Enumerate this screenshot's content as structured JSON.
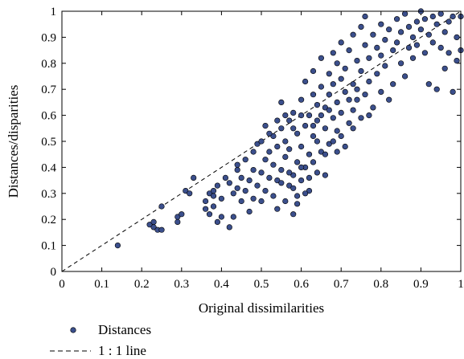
{
  "chart_data": {
    "type": "scatter",
    "xlabel": "Original dissimilarities",
    "ylabel": "Distances/disparities",
    "xlim": [
      0,
      1
    ],
    "ylim": [
      0,
      1
    ],
    "xticks": [
      "0",
      "0.1",
      "0.2",
      "0.3",
      "0.4",
      "0.5",
      "0.6",
      "0.7",
      "0.8",
      "0.9",
      "1"
    ],
    "yticks": [
      "0",
      "0.1",
      "0.2",
      "0.3",
      "0.4",
      "0.5",
      "0.6",
      "0.7",
      "0.8",
      "0.9",
      "1"
    ],
    "grid": false,
    "legend_position": "bottom-left, below axes",
    "series": [
      {
        "name": "Distances",
        "marker": "circle",
        "color": "#3b4f8c",
        "edge_color": "#000000",
        "points": [
          [
            0.14,
            0.1
          ],
          [
            0.22,
            0.18
          ],
          [
            0.23,
            0.17
          ],
          [
            0.23,
            0.19
          ],
          [
            0.24,
            0.16
          ],
          [
            0.25,
            0.16
          ],
          [
            0.25,
            0.25
          ],
          [
            0.29,
            0.19
          ],
          [
            0.29,
            0.21
          ],
          [
            0.3,
            0.22
          ],
          [
            0.31,
            0.31
          ],
          [
            0.32,
            0.3
          ],
          [
            0.33,
            0.36
          ],
          [
            0.36,
            0.24
          ],
          [
            0.36,
            0.27
          ],
          [
            0.37,
            0.3
          ],
          [
            0.37,
            0.22
          ],
          [
            0.38,
            0.25
          ],
          [
            0.38,
            0.29
          ],
          [
            0.38,
            0.31
          ],
          [
            0.39,
            0.19
          ],
          [
            0.39,
            0.33
          ],
          [
            0.4,
            0.21
          ],
          [
            0.4,
            0.28
          ],
          [
            0.41,
            0.36
          ],
          [
            0.42,
            0.17
          ],
          [
            0.42,
            0.34
          ],
          [
            0.43,
            0.3
          ],
          [
            0.43,
            0.21
          ],
          [
            0.44,
            0.39
          ],
          [
            0.44,
            0.32
          ],
          [
            0.44,
            0.41
          ],
          [
            0.45,
            0.27
          ],
          [
            0.45,
            0.36
          ],
          [
            0.46,
            0.31
          ],
          [
            0.46,
            0.43
          ],
          [
            0.47,
            0.23
          ],
          [
            0.47,
            0.35
          ],
          [
            0.48,
            0.39
          ],
          [
            0.48,
            0.46
          ],
          [
            0.48,
            0.28
          ],
          [
            0.49,
            0.33
          ],
          [
            0.49,
            0.49
          ],
          [
            0.5,
            0.27
          ],
          [
            0.5,
            0.38
          ],
          [
            0.5,
            0.5
          ],
          [
            0.51,
            0.31
          ],
          [
            0.51,
            0.43
          ],
          [
            0.51,
            0.56
          ],
          [
            0.52,
            0.46
          ],
          [
            0.52,
            0.36
          ],
          [
            0.53,
            0.29
          ],
          [
            0.53,
            0.52
          ],
          [
            0.53,
            0.41
          ],
          [
            0.54,
            0.24
          ],
          [
            0.54,
            0.35
          ],
          [
            0.54,
            0.48
          ],
          [
            0.55,
            0.39
          ],
          [
            0.55,
            0.55
          ],
          [
            0.55,
            0.65
          ],
          [
            0.56,
            0.27
          ],
          [
            0.56,
            0.44
          ],
          [
            0.56,
            0.5
          ],
          [
            0.57,
            0.33
          ],
          [
            0.57,
            0.58
          ],
          [
            0.57,
            0.47
          ],
          [
            0.58,
            0.22
          ],
          [
            0.58,
            0.37
          ],
          [
            0.58,
            0.61
          ],
          [
            0.59,
            0.42
          ],
          [
            0.59,
            0.53
          ],
          [
            0.59,
            0.29
          ],
          [
            0.6,
            0.66
          ],
          [
            0.6,
            0.48
          ],
          [
            0.6,
            0.35
          ],
          [
            0.61,
            0.56
          ],
          [
            0.61,
            0.73
          ],
          [
            0.61,
            0.4
          ],
          [
            0.62,
            0.45
          ],
          [
            0.62,
            0.6
          ],
          [
            0.62,
            0.31
          ],
          [
            0.63,
            0.68
          ],
          [
            0.63,
            0.52
          ],
          [
            0.63,
            0.77
          ],
          [
            0.64,
            0.38
          ],
          [
            0.64,
            0.58
          ],
          [
            0.64,
            0.64
          ],
          [
            0.65,
            0.46
          ],
          [
            0.65,
            0.71
          ],
          [
            0.65,
            0.82
          ],
          [
            0.66,
            0.55
          ],
          [
            0.66,
            0.63
          ],
          [
            0.66,
            0.37
          ],
          [
            0.67,
            0.76
          ],
          [
            0.67,
            0.68
          ],
          [
            0.67,
            0.49
          ],
          [
            0.68,
            0.59
          ],
          [
            0.68,
            0.84
          ],
          [
            0.68,
            0.72
          ],
          [
            0.69,
            0.65
          ],
          [
            0.69,
            0.54
          ],
          [
            0.69,
            0.8
          ],
          [
            0.7,
            0.74
          ],
          [
            0.7,
            0.61
          ],
          [
            0.7,
            0.88
          ],
          [
            0.71,
            0.69
          ],
          [
            0.71,
            0.48
          ],
          [
            0.71,
            0.78
          ],
          [
            0.72,
            0.66
          ],
          [
            0.72,
            0.85
          ],
          [
            0.72,
            0.57
          ],
          [
            0.73,
            0.72
          ],
          [
            0.73,
            0.91
          ],
          [
            0.73,
            0.62
          ],
          [
            0.74,
            0.81
          ],
          [
            0.74,
            0.7
          ],
          [
            0.75,
            0.94
          ],
          [
            0.75,
            0.77
          ],
          [
            0.75,
            0.59
          ],
          [
            0.76,
            0.87
          ],
          [
            0.76,
            0.68
          ],
          [
            0.76,
            0.98
          ],
          [
            0.77,
            0.82
          ],
          [
            0.77,
            0.73
          ],
          [
            0.78,
            0.91
          ],
          [
            0.78,
            0.63
          ],
          [
            0.79,
            0.86
          ],
          [
            0.79,
            0.76
          ],
          [
            0.8,
            0.95
          ],
          [
            0.8,
            0.69
          ],
          [
            0.8,
            0.83
          ],
          [
            0.81,
            0.89
          ],
          [
            0.81,
            0.79
          ],
          [
            0.82,
            0.66
          ],
          [
            0.82,
            0.93
          ],
          [
            0.83,
            0.85
          ],
          [
            0.83,
            0.72
          ],
          [
            0.84,
            0.97
          ],
          [
            0.84,
            0.88
          ],
          [
            0.85,
            0.8
          ],
          [
            0.85,
            0.92
          ],
          [
            0.86,
            0.75
          ],
          [
            0.86,
            0.99
          ],
          [
            0.87,
            0.86
          ],
          [
            0.87,
            0.94
          ],
          [
            0.88,
            0.82
          ],
          [
            0.88,
            0.9
          ],
          [
            0.89,
            0.96
          ],
          [
            0.89,
            0.87
          ],
          [
            0.9,
            1.0
          ],
          [
            0.9,
            0.93
          ],
          [
            0.91,
            0.84
          ],
          [
            0.91,
            0.97
          ],
          [
            0.92,
            0.72
          ],
          [
            0.92,
            0.91
          ],
          [
            0.93,
            0.98
          ],
          [
            0.93,
            0.88
          ],
          [
            0.94,
            0.95
          ],
          [
            0.94,
            0.7
          ],
          [
            0.95,
            0.99
          ],
          [
            0.95,
            0.86
          ],
          [
            0.96,
            0.92
          ],
          [
            0.96,
            0.78
          ],
          [
            0.97,
            0.96
          ],
          [
            0.97,
            0.84
          ],
          [
            0.98,
            0.69
          ],
          [
            0.98,
            0.98
          ],
          [
            0.99,
            0.9
          ],
          [
            0.99,
            0.81
          ],
          [
            1.0,
            0.98
          ],
          [
            1.0,
            0.85
          ],
          [
            0.57,
            0.38
          ],
          [
            0.6,
            0.4
          ],
          [
            0.63,
            0.42
          ],
          [
            0.58,
            0.32
          ],
          [
            0.62,
            0.36
          ],
          [
            0.55,
            0.34
          ],
          [
            0.59,
            0.26
          ],
          [
            0.61,
            0.3
          ],
          [
            0.66,
            0.45
          ],
          [
            0.68,
            0.5
          ],
          [
            0.64,
            0.5
          ],
          [
            0.69,
            0.46
          ],
          [
            0.7,
            0.52
          ],
          [
            0.73,
            0.55
          ],
          [
            0.77,
            0.6
          ],
          [
            0.74,
            0.66
          ],
          [
            0.65,
            0.6
          ],
          [
            0.67,
            0.62
          ],
          [
            0.63,
            0.56
          ],
          [
            0.6,
            0.6
          ],
          [
            0.58,
            0.55
          ],
          [
            0.56,
            0.6
          ],
          [
            0.54,
            0.58
          ],
          [
            0.52,
            0.53
          ]
        ]
      },
      {
        "name": "1 : 1 line",
        "style": "dashed",
        "color": "#000000",
        "points": [
          [
            0,
            0
          ],
          [
            1,
            1
          ]
        ]
      }
    ]
  }
}
